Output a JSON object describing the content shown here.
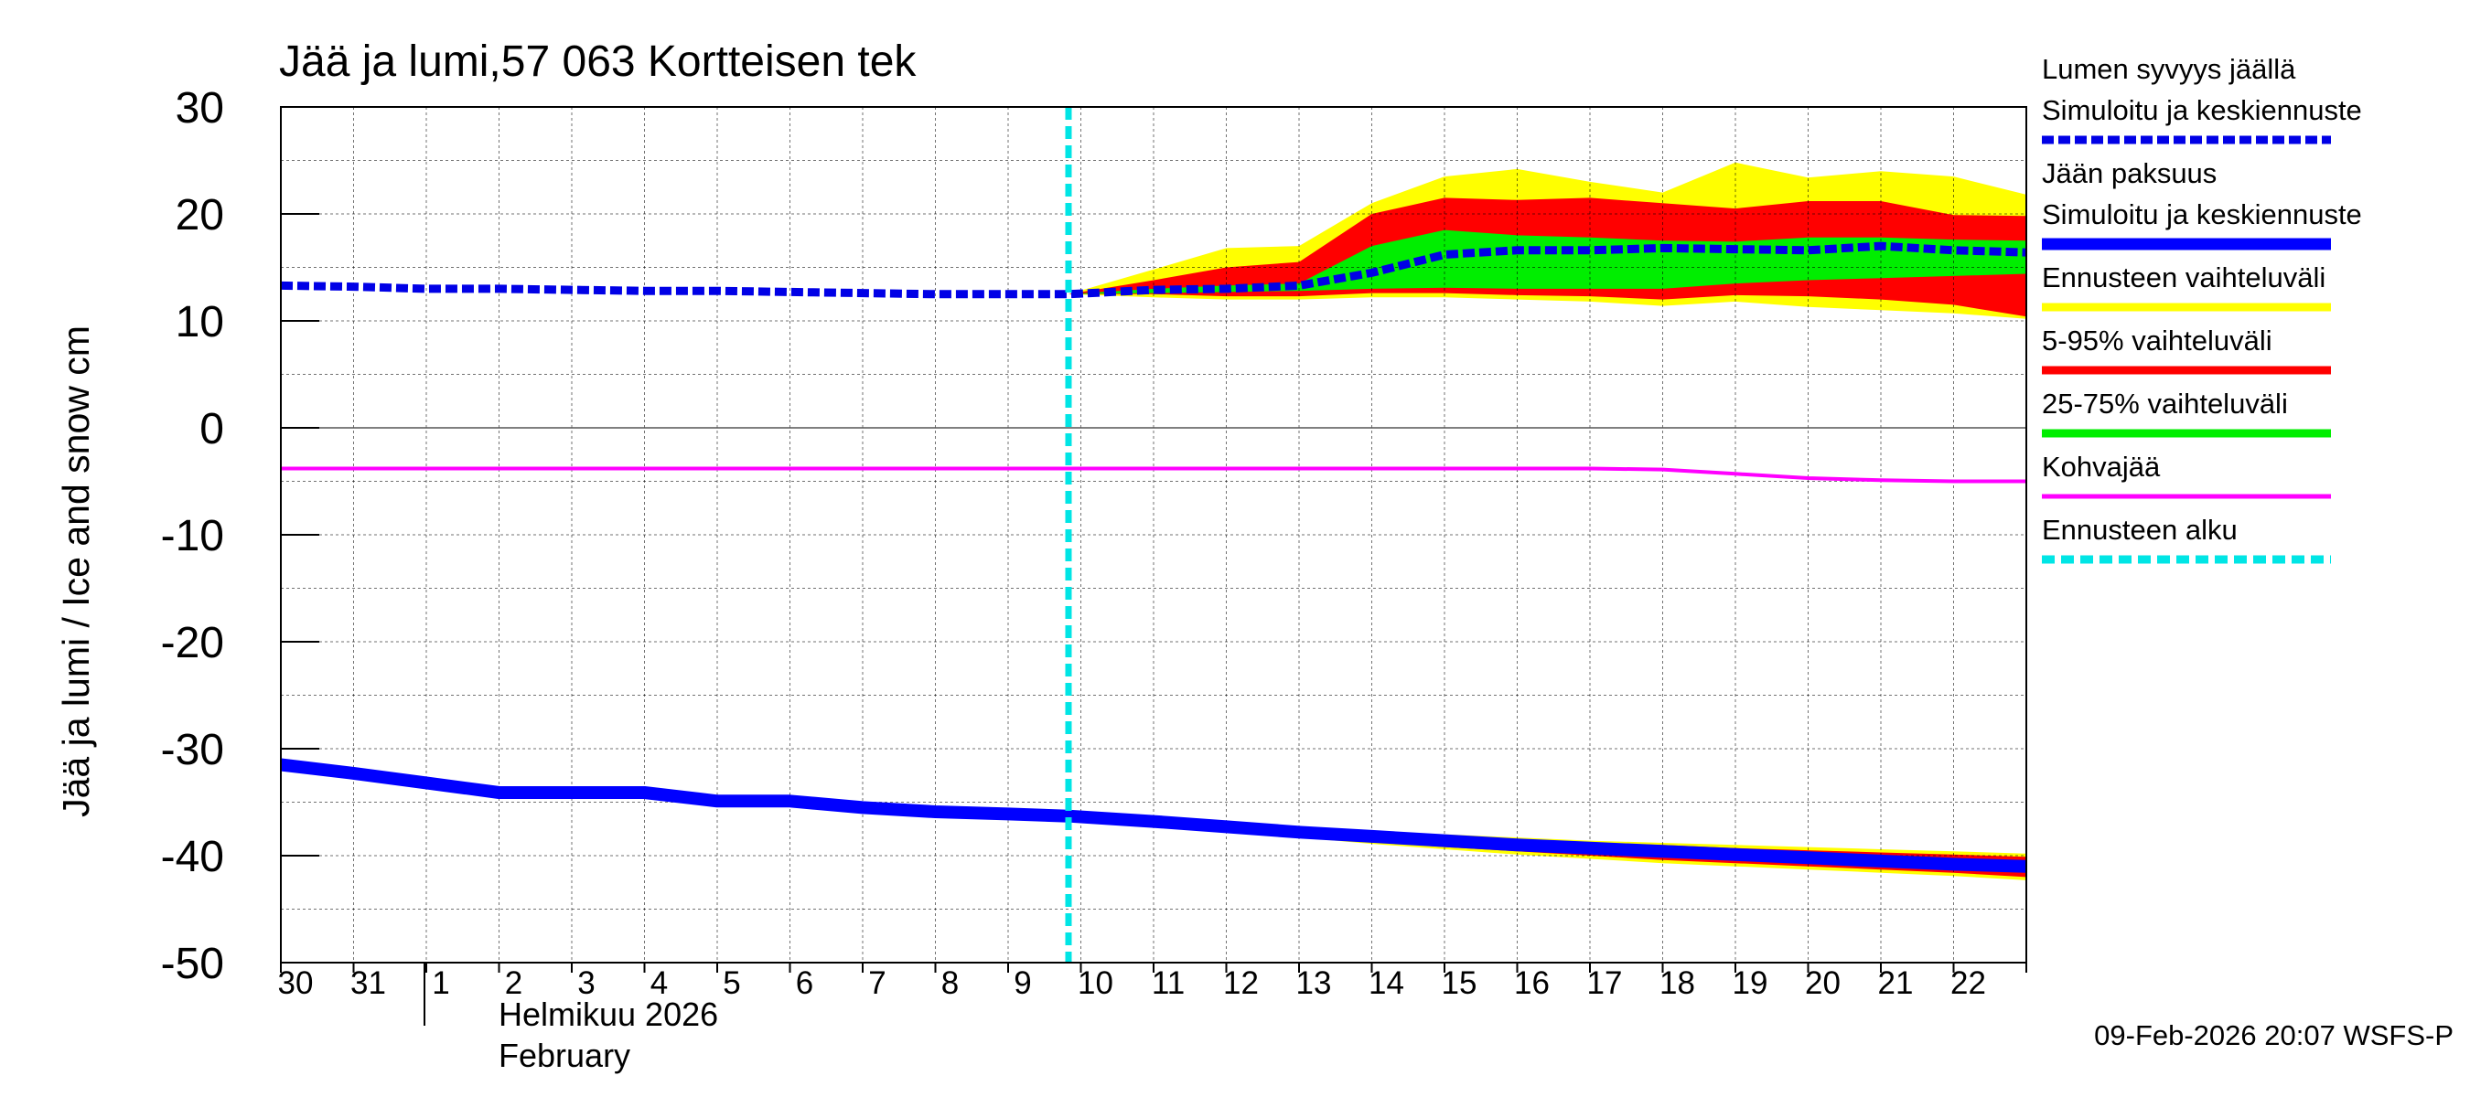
{
  "chart_data": {
    "type": "area",
    "title": "Jää ja lumi,57 063 Kortteisen tek",
    "ylabel": "Jää ja lumi / Ice and snow    cm",
    "ylim": [
      -50,
      30
    ],
    "yticks": [
      "30",
      "20",
      "10",
      "0",
      "-10",
      "-20",
      "-30",
      "-40",
      "-50"
    ],
    "xlim": [
      0,
      24
    ],
    "x_tick_labels": [
      {
        "pos": 0,
        "label": "30"
      },
      {
        "pos": 1,
        "label": "31"
      },
      {
        "pos": 2,
        "label": "1"
      },
      {
        "pos": 3,
        "label": "2"
      },
      {
        "pos": 4,
        "label": "3"
      },
      {
        "pos": 5,
        "label": "4"
      },
      {
        "pos": 6,
        "label": "5"
      },
      {
        "pos": 7,
        "label": "6"
      },
      {
        "pos": 8,
        "label": "7"
      },
      {
        "pos": 9,
        "label": "8"
      },
      {
        "pos": 10,
        "label": "9"
      },
      {
        "pos": 11,
        "label": "10"
      },
      {
        "pos": 12,
        "label": "11"
      },
      {
        "pos": 13,
        "label": "12"
      },
      {
        "pos": 14,
        "label": "13"
      },
      {
        "pos": 15,
        "label": "14"
      },
      {
        "pos": 16,
        "label": "15"
      },
      {
        "pos": 17,
        "label": "16"
      },
      {
        "pos": 18,
        "label": "17"
      },
      {
        "pos": 19,
        "label": "18"
      },
      {
        "pos": 20,
        "label": "19"
      },
      {
        "pos": 21,
        "label": "20"
      },
      {
        "pos": 22,
        "label": "21"
      },
      {
        "pos": 23,
        "label": "22"
      }
    ],
    "month_start_pos": 2,
    "month_label_fi": "Helmikuu  2026",
    "month_label_en": "February",
    "forecast_start": 10.83,
    "footer": "09-Feb-2026 20:07 WSFS-P",
    "colors": {
      "snow": "#0000e6",
      "ice": "#0000ff",
      "range": "#ffff00",
      "p5_95": "#ff0000",
      "p25_75": "#00ee00",
      "slush": "#ff00ff",
      "forecast_start": "#00e5e5",
      "grid": "#000000"
    },
    "legend": [
      {
        "label": "Lumen syvyys jäällä",
        "line": null
      },
      {
        "label": "Simuloitu ja keskiennuste",
        "line": "snow"
      },
      {
        "label": "Jään paksuus",
        "line": null
      },
      {
        "label": "Simuloitu ja keskiennuste",
        "line": "ice"
      },
      {
        "label": "Ennusteen vaihteluväli",
        "line": "range"
      },
      {
        "label": "5-95% vaihteluväli",
        "line": "p5_95"
      },
      {
        "label": "25-75% vaihteluväli",
        "line": "p25_75"
      },
      {
        "label": "Kohvajää",
        "line": "slush"
      },
      {
        "label": "Ennusteen alku",
        "line": "forecast_start"
      }
    ],
    "series": {
      "snow_depth": {
        "name": "Lumen syvyys jäällä – Simuloitu ja keskiennuste",
        "x": [
          0,
          1,
          2,
          3,
          4,
          5,
          6,
          7,
          8,
          9,
          10,
          10.83,
          12,
          13,
          14,
          15,
          16,
          17,
          18,
          19,
          20,
          21,
          22,
          23,
          24
        ],
        "y": [
          13.3,
          13.2,
          13.0,
          13.0,
          12.9,
          12.8,
          12.8,
          12.7,
          12.6,
          12.5,
          12.5,
          12.5,
          12.9,
          13.0,
          13.3,
          14.5,
          16.2,
          16.6,
          16.6,
          16.8,
          16.7,
          16.6,
          17.0,
          16.6,
          16.4
        ]
      },
      "snow_range": {
        "x": [
          10.83,
          12,
          13,
          14,
          15,
          16,
          17,
          18,
          19,
          20,
          21,
          22,
          23,
          24
        ],
        "upper": [
          12.5,
          14.8,
          16.8,
          17.0,
          21.0,
          23.5,
          24.2,
          23.0,
          22.0,
          24.8,
          23.4,
          24.0,
          23.5,
          21.8
        ],
        "lower": [
          12.5,
          12.2,
          12.0,
          12.0,
          12.2,
          12.2,
          12.0,
          11.8,
          11.4,
          11.8,
          11.3,
          11.0,
          10.7,
          10.2
        ]
      },
      "snow_p5_95": {
        "x": [
          10.83,
          12,
          13,
          14,
          15,
          16,
          17,
          18,
          19,
          20,
          21,
          22,
          23,
          24
        ],
        "upper": [
          12.5,
          13.8,
          15.0,
          15.5,
          20.0,
          21.5,
          21.3,
          21.5,
          21.0,
          20.5,
          21.2,
          21.2,
          19.9,
          19.8
        ],
        "lower": [
          12.5,
          12.5,
          12.3,
          12.3,
          12.6,
          12.6,
          12.4,
          12.3,
          12.0,
          12.4,
          12.3,
          12.0,
          11.5,
          10.4
        ]
      },
      "snow_p25_75": {
        "x": [
          10.83,
          12,
          13,
          14,
          15,
          16,
          17,
          18,
          19,
          20,
          21,
          22,
          23,
          24
        ],
        "upper": [
          12.5,
          13.0,
          13.3,
          13.5,
          17.0,
          18.5,
          18.0,
          17.8,
          17.5,
          17.4,
          17.8,
          17.8,
          17.6,
          17.5
        ],
        "lower": [
          12.5,
          12.6,
          12.7,
          12.8,
          13.0,
          13.1,
          13.0,
          13.0,
          13.0,
          13.5,
          13.8,
          14.0,
          14.2,
          14.4
        ]
      },
      "ice_thickness": {
        "name": "Jään paksuus – Simuloitu ja keskiennuste",
        "x": [
          0,
          1,
          2,
          3,
          4,
          5,
          6,
          7,
          8,
          9,
          10,
          10.83,
          12,
          13,
          14,
          15,
          16,
          17,
          18,
          19,
          20,
          21,
          22,
          23,
          24
        ],
        "y": [
          -31.5,
          -32.3,
          -33.2,
          -34.1,
          -34.1,
          -34.1,
          -34.9,
          -34.9,
          -35.5,
          -35.9,
          -36.1,
          -36.3,
          -36.8,
          -37.3,
          -37.8,
          -38.2,
          -38.6,
          -39.0,
          -39.3,
          -39.6,
          -39.9,
          -40.2,
          -40.5,
          -40.8,
          -41.0
        ]
      },
      "ice_range": {
        "x": [
          10.83,
          12,
          13,
          14,
          15,
          16,
          17,
          18,
          19,
          20,
          21,
          22,
          23,
          24
        ],
        "upper": [
          -36.3,
          -36.6,
          -37.0,
          -37.4,
          -37.8,
          -38.0,
          -38.3,
          -38.6,
          -38.8,
          -39.0,
          -39.2,
          -39.4,
          -39.6,
          -39.8
        ],
        "lower": [
          -36.3,
          -36.9,
          -37.6,
          -38.3,
          -38.9,
          -39.4,
          -39.9,
          -40.3,
          -40.7,
          -41.0,
          -41.3,
          -41.6,
          -41.9,
          -42.3
        ]
      },
      "ice_p5_95": {
        "x": [
          10.83,
          12,
          13,
          14,
          15,
          16,
          17,
          18,
          19,
          20,
          21,
          22,
          23,
          24
        ],
        "upper": [
          -36.3,
          -36.7,
          -37.1,
          -37.5,
          -37.9,
          -38.2,
          -38.5,
          -38.8,
          -39.0,
          -39.3,
          -39.5,
          -39.7,
          -39.9,
          -40.1
        ],
        "lower": [
          -36.3,
          -36.8,
          -37.4,
          -38.1,
          -38.7,
          -39.2,
          -39.6,
          -40.0,
          -40.4,
          -40.7,
          -41.0,
          -41.3,
          -41.6,
          -42.0
        ]
      },
      "slush_ice": {
        "name": "Kohvajää",
        "x": [
          0,
          1,
          2,
          3,
          4,
          5,
          6,
          7,
          8,
          9,
          10,
          11,
          12,
          13,
          14,
          15,
          16,
          17,
          18,
          19,
          20,
          21,
          22,
          23,
          24
        ],
        "y": [
          -3.8,
          -3.8,
          -3.8,
          -3.8,
          -3.8,
          -3.8,
          -3.8,
          -3.8,
          -3.8,
          -3.8,
          -3.8,
          -3.8,
          -3.8,
          -3.8,
          -3.8,
          -3.8,
          -3.8,
          -3.8,
          -3.8,
          -3.9,
          -4.3,
          -4.7,
          -4.9,
          -5.0,
          -5.0
        ]
      }
    }
  }
}
